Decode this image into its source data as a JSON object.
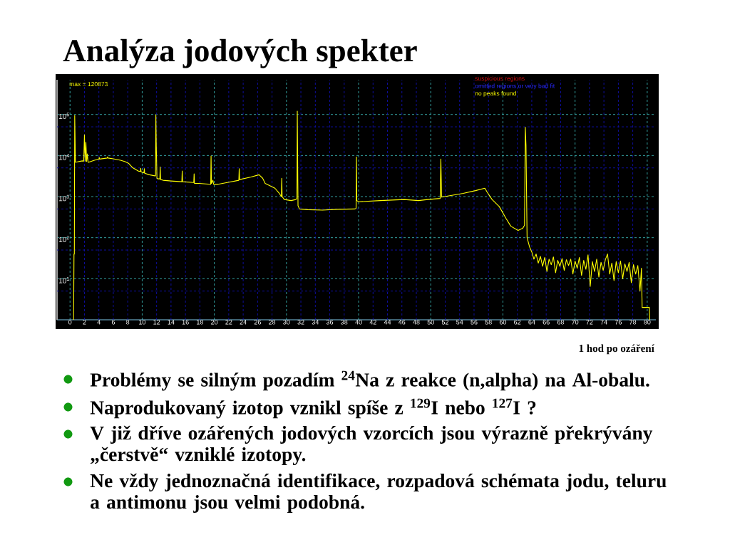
{
  "chart_data": {
    "type": "line",
    "title": "Analýza jodových spekter",
    "annotations": [
      "1 hod po ozáření",
      "Problémy se silným pozadím $^{24}$Na z reakce (n,alpha) na Al-obalu.",
      "Naprodukovaný izotop vznikl spíše z $^{129}$I nebo $^{127}$I ?",
      "V již dříve ozářených jodových vzorcích jsou výrazně překrývány „čerstvě“ vzniklé izotopy.",
      "Ne vždy jednoznačná identifikace, rozpadová schémata jodu, teluru a antimonu jsou velmi podobná.",
      "max = 120873",
      "suspicious regions",
      "omitted regions or very bad fit",
      "no peaks found"
    ],
    "x": [
      0.5,
      0.55,
      0.6,
      0.65,
      0.75,
      1.0,
      1.7,
      1.9,
      2.0,
      2.1,
      2.2,
      2.3,
      2.4,
      2.5,
      2.6,
      3.3,
      4.0,
      4.05,
      4.1,
      5.15,
      5.2,
      5.25,
      6.0,
      7.0,
      7.65,
      8.15,
      8.65,
      9.45,
      9.75,
      9.8,
      9.85,
      10.25,
      10.3,
      10.35,
      11.0,
      11.75,
      11.85,
      11.9,
      11.95,
      12.05,
      12.2,
      12.45,
      12.5,
      12.55,
      12.9,
      14.0,
      15.5,
      15.55,
      15.6,
      17.15,
      17.2,
      17.25,
      17.85,
      19.5,
      19.55,
      19.6,
      19.8,
      19.9,
      20.5,
      21.8,
      23.4,
      23.45,
      23.5,
      25.1,
      26.2,
      26.7,
      27.05,
      28.4,
      29.0,
      29.3,
      29.35,
      29.4,
      29.7,
      30.65,
      31.3,
      31.45,
      31.5,
      31.6,
      31.8,
      33.0,
      35.0,
      37.0,
      39.5,
      39.65,
      39.7,
      39.75,
      40.0,
      43.0,
      46.3,
      48.3,
      49.6,
      51.3,
      51.4,
      51.5,
      54.5,
      56.2,
      57.5,
      57.8,
      58.5,
      59.5,
      60.45,
      61.1,
      62.1,
      62.75,
      63.0,
      63.1,
      63.2,
      63.35,
      63.7,
      64.0,
      64.3,
      64.6,
      64.9,
      65.2,
      65.5,
      65.8,
      66.1,
      66.4,
      66.7,
      67.0,
      67.3,
      67.6,
      67.9,
      68.2,
      68.5,
      68.8,
      69.1,
      69.4,
      69.7,
      70.0,
      70.3,
      70.6,
      70.9,
      71.2,
      71.5,
      71.8,
      72.1,
      72.4,
      72.7,
      73.0,
      73.3,
      73.6,
      73.9,
      74.2,
      74.5,
      74.8,
      75.1,
      75.4,
      75.7,
      76.0,
      76.3,
      76.6,
      76.9,
      77.2,
      77.5,
      77.8,
      78.1,
      78.4,
      78.7,
      79.0,
      79.2,
      79.3,
      80.0,
      80.3,
      80.35
    ],
    "values": [
      1,
      40,
      40,
      95000,
      6900,
      7000,
      7400,
      7300,
      32000,
      7300,
      21000,
      7200,
      11000,
      6900,
      6900,
      7600,
      8200,
      9000,
      8200,
      8700,
      9300,
      8700,
      8300,
      7700,
      7100,
      6400,
      5100,
      4200,
      4100,
      4900,
      4000,
      3800,
      4800,
      3700,
      3400,
      3200,
      3200,
      98000,
      20000,
      2800,
      2700,
      2700,
      5300,
      2600,
      2500,
      2400,
      2300,
      4200,
      2300,
      2200,
      3600,
      2100,
      2100,
      2000,
      9700,
      2100,
      2500,
      2000,
      2000,
      2200,
      2500,
      4800,
      2600,
      3000,
      3400,
      2800,
      2100,
      1600,
      1200,
      1000,
      2800,
      1000,
      850,
      800,
      850,
      900,
      120873,
      600,
      500,
      480,
      470,
      490,
      500,
      520,
      9300,
      800,
      750,
      800,
      850,
      800,
      850,
      900,
      8200,
      970,
      1200,
      1400,
      1600,
      1300,
      850,
      570,
      290,
      190,
      150,
      170,
      200,
      49000,
      18000,
      100,
      59,
      45,
      30,
      40,
      24,
      35,
      20,
      33,
      15,
      30,
      22,
      34,
      14,
      28,
      20,
      31,
      16,
      29,
      21,
      30,
      13,
      27,
      18,
      33,
      12,
      28,
      17,
      38,
      6.5,
      26,
      15,
      30,
      11,
      25,
      16,
      29,
      40,
      13,
      24,
      9,
      26,
      14,
      27,
      10,
      23,
      15,
      25,
      8,
      22,
      13,
      21,
      5,
      18,
      2,
      2,
      2,
      1
    ],
    "color": "#ffff00",
    "xlim": [
      -1.8,
      81.2
    ],
    "ylim": [
      1,
      700000
    ],
    "xticks": [
      0,
      2,
      4,
      6,
      8,
      10,
      12,
      14,
      16,
      18,
      20,
      22,
      24,
      26,
      28,
      30,
      32,
      34,
      36,
      38,
      40,
      42,
      44,
      46,
      48,
      50,
      52,
      54,
      56,
      58,
      60,
      62,
      64,
      66,
      68,
      70,
      72,
      74,
      76,
      78,
      80
    ],
    "yticks": [
      {
        "value": 5,
        "label": null
      },
      {
        "value": 10,
        "label": "10$^{1}$"
      },
      {
        "value": 50,
        "label": null
      },
      {
        "value": 100,
        "label": "10$^{2}$"
      },
      {
        "value": 500,
        "label": null
      },
      {
        "value": 1000,
        "label": "10$^{3}$"
      },
      {
        "value": 5000,
        "label": null
      },
      {
        "value": 10000,
        "label": "10$^{4}$"
      },
      {
        "value": 50000,
        "label": null
      },
      {
        "value": 100000,
        "label": "10$^{5}$"
      }
    ],
    "log": "y",
    "grid": true
  }
}
